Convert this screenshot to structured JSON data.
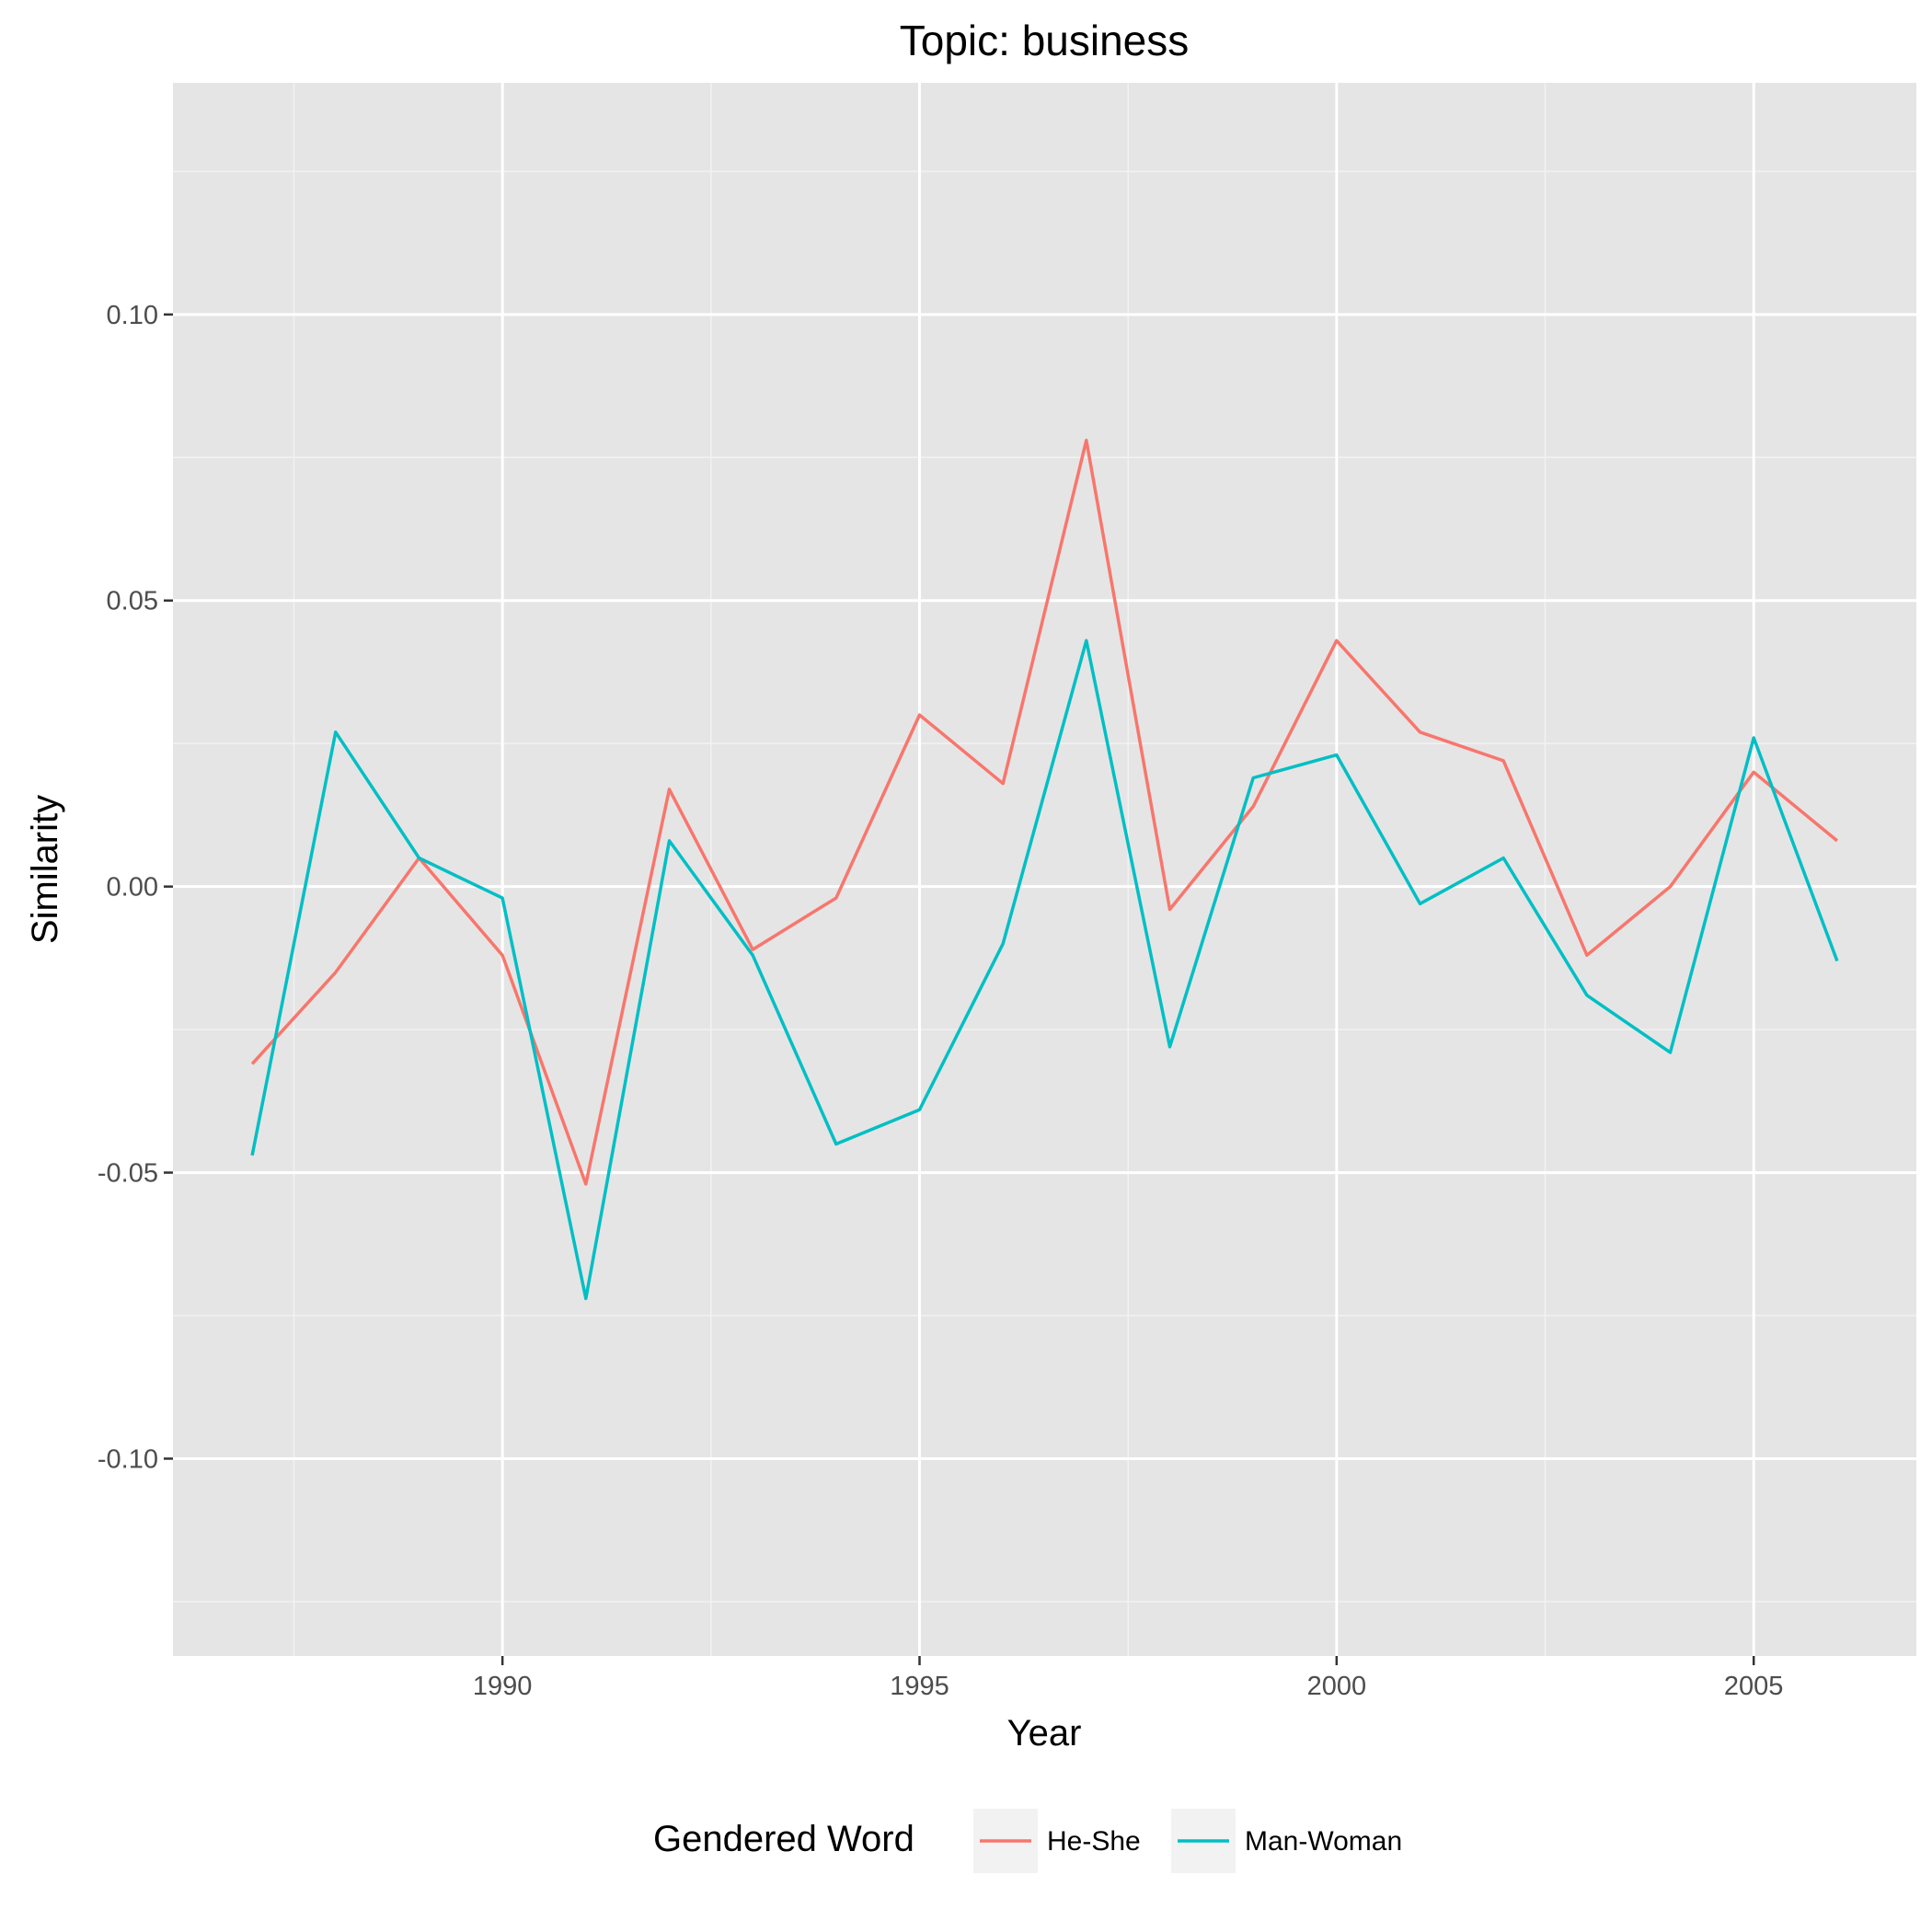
{
  "chart_data": {
    "type": "line",
    "title": "Topic: business",
    "xlabel": "Year",
    "ylabel": "Similarity",
    "xlim": [
      1986.05,
      2006.95
    ],
    "ylim": [
      -0.1345,
      0.1405
    ],
    "x_ticks": [
      1990,
      1995,
      2000,
      2005
    ],
    "x_tick_labels": [
      "1990",
      "1995",
      "2000",
      "2005"
    ],
    "y_ticks": [
      -0.1,
      -0.05,
      0.0,
      0.05,
      0.1
    ],
    "y_tick_labels": [
      "-0.10",
      "-0.05",
      "0.00",
      "0.05",
      "0.10"
    ],
    "grid": true,
    "legend": {
      "title": "Gendered Word",
      "position": "bottom"
    },
    "x": [
      1987,
      1988,
      1989,
      1990,
      1991,
      1992,
      1993,
      1994,
      1995,
      1996,
      1997,
      1998,
      1999,
      2000,
      2001,
      2002,
      2003,
      2004,
      2005,
      2006
    ],
    "series": [
      {
        "name": "He-She",
        "color": "#F8766D",
        "values": [
          -0.031,
          -0.015,
          0.005,
          -0.012,
          -0.052,
          0.017,
          -0.011,
          -0.002,
          0.03,
          0.018,
          0.078,
          -0.004,
          0.014,
          0.043,
          0.027,
          0.022,
          -0.012,
          0.0,
          0.02,
          0.008
        ]
      },
      {
        "name": "Man-Woman",
        "color": "#00BFC4",
        "values": [
          -0.047,
          0.027,
          0.005,
          -0.002,
          -0.072,
          0.008,
          -0.012,
          -0.045,
          -0.039,
          -0.01,
          0.043,
          -0.028,
          0.019,
          0.023,
          -0.003,
          0.005,
          -0.019,
          -0.029,
          0.026,
          -0.013
        ]
      }
    ]
  }
}
